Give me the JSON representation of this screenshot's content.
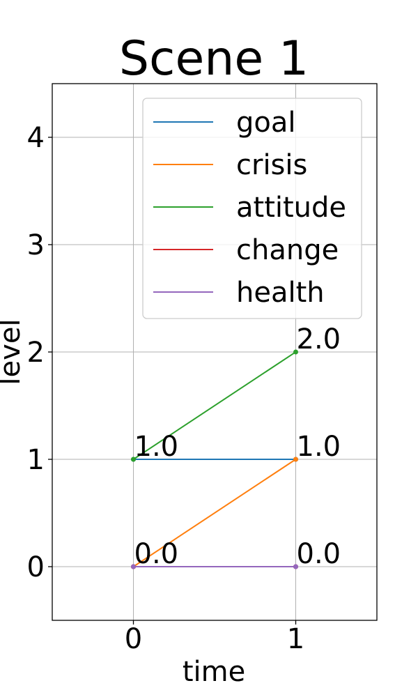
{
  "chart_data": {
    "type": "line",
    "title": "Scene 1",
    "xlabel": "time",
    "ylabel": "level",
    "xlim": [
      -0.5,
      1.5
    ],
    "ylim": [
      -0.5,
      4.5
    ],
    "xticks": [
      0,
      1
    ],
    "yticks": [
      0,
      1,
      2,
      3,
      4
    ],
    "xtick_labels": [
      "0",
      "1"
    ],
    "ytick_labels": [
      "0",
      "1",
      "2",
      "3",
      "4"
    ],
    "grid": true,
    "legend_position": "top-right",
    "x": [
      0,
      1
    ],
    "series": [
      {
        "name": "goal",
        "color": "#1f77b4",
        "values": [
          1,
          1
        ]
      },
      {
        "name": "crisis",
        "color": "#ff7f0e",
        "values": [
          0,
          1
        ]
      },
      {
        "name": "attitude",
        "color": "#2ca02c",
        "values": [
          1,
          2
        ]
      },
      {
        "name": "change",
        "color": "#d62728",
        "values": [
          0,
          0
        ]
      },
      {
        "name": "health",
        "color": "#9467bd",
        "values": [
          0,
          0
        ]
      }
    ],
    "annotations": [
      {
        "x": 0,
        "y": 1,
        "text": "1.0"
      },
      {
        "x": 0,
        "y": 0,
        "text": "0.0"
      },
      {
        "x": 1,
        "y": 2,
        "text": "2.0"
      },
      {
        "x": 1,
        "y": 1,
        "text": "1.0"
      },
      {
        "x": 1,
        "y": 0,
        "text": "0.0"
      }
    ]
  }
}
